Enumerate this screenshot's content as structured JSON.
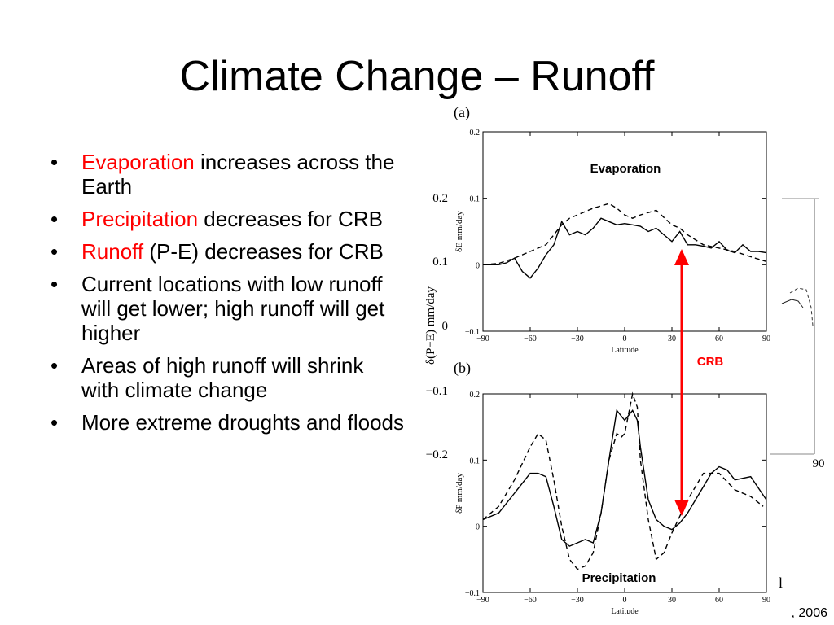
{
  "slide": {
    "title": "Climate Change – Runoff",
    "bullets": [
      {
        "highlight": "Evaporation",
        "text": " increases across the Earth"
      },
      {
        "highlight": "Precipitation",
        "text": " decreases for CRB"
      },
      {
        "highlight": "Runoff",
        "text": " (P-E) decreases for CRB"
      },
      {
        "highlight": "",
        "text": "Current locations with low runoff will get lower; high runoff will get higher"
      },
      {
        "highlight": "",
        "text": "Areas of high runoff will shrink with climate change"
      },
      {
        "highlight": "",
        "text": "More extreme droughts and floods"
      }
    ],
    "citation_fragment": ", 2006",
    "edge_fragment": "l"
  },
  "colors": {
    "highlight": "#ff0000",
    "arrow": "#ff0000",
    "crb_label": "#ff0000"
  },
  "annotations": {
    "evaporation_label": "Evaporation",
    "precipitation_label": "Precipitation",
    "crb_label": "CRB"
  },
  "chart_data": [
    {
      "type": "line",
      "panel_label": "(a)",
      "xlabel": "Latitude",
      "ylabel": "δE  mm/day",
      "xlim": [
        -90,
        90
      ],
      "ylim": [
        -0.1,
        0.2
      ],
      "xticks": [
        "−90",
        "−60",
        "−30",
        "0",
        "30",
        "60",
        "90"
      ],
      "yticks": [
        "−0.1",
        "0",
        "0.1",
        "0.2"
      ],
      "series": [
        {
          "style": "solid",
          "x": [
            -90,
            -80,
            -75,
            -70,
            -65,
            -60,
            -55,
            -50,
            -45,
            -40,
            -35,
            -30,
            -25,
            -20,
            -15,
            -10,
            -5,
            0,
            5,
            10,
            15,
            20,
            25,
            30,
            35,
            40,
            45,
            50,
            55,
            60,
            65,
            70,
            75,
            80,
            85,
            90
          ],
          "y": [
            0.0,
            0.0,
            0.003,
            0.01,
            -0.01,
            -0.02,
            -0.005,
            0.015,
            0.03,
            0.065,
            0.045,
            0.05,
            0.045,
            0.055,
            0.07,
            0.065,
            0.06,
            0.062,
            0.06,
            0.058,
            0.05,
            0.055,
            0.045,
            0.035,
            0.05,
            0.03,
            0.03,
            0.028,
            0.025,
            0.035,
            0.022,
            0.018,
            0.03,
            0.02,
            0.02,
            0.018
          ]
        },
        {
          "style": "dashed",
          "x": [
            -90,
            -80,
            -70,
            -60,
            -50,
            -40,
            -35,
            -30,
            -20,
            -10,
            -5,
            0,
            5,
            10,
            20,
            30,
            35,
            40,
            50,
            60,
            70,
            80,
            90
          ],
          "y": [
            0.0,
            0.002,
            0.01,
            0.02,
            0.03,
            0.06,
            0.07,
            0.075,
            0.085,
            0.092,
            0.085,
            0.075,
            0.07,
            0.075,
            0.082,
            0.06,
            0.055,
            0.045,
            0.03,
            0.025,
            0.02,
            0.012,
            0.005
          ]
        }
      ]
    },
    {
      "type": "line",
      "panel_label": "(b)",
      "xlabel": "Latitude",
      "ylabel": "δP  mm/day",
      "xlim": [
        -90,
        90
      ],
      "ylim": [
        -0.1,
        0.2
      ],
      "xticks": [
        "−90",
        "−60",
        "−30",
        "0",
        "30",
        "60",
        "90"
      ],
      "yticks": [
        "−0.1",
        "0",
        "0.1",
        "0.2"
      ],
      "series": [
        {
          "style": "solid",
          "x": [
            -90,
            -80,
            -70,
            -60,
            -55,
            -50,
            -45,
            -40,
            -35,
            -30,
            -25,
            -20,
            -15,
            -10,
            -5,
            0,
            5,
            8,
            10,
            15,
            20,
            25,
            30,
            35,
            40,
            50,
            55,
            60,
            65,
            70,
            80,
            90
          ],
          "y": [
            0.01,
            0.02,
            0.05,
            0.08,
            0.08,
            0.075,
            0.03,
            -0.02,
            -0.03,
            -0.025,
            -0.02,
            -0.025,
            0.02,
            0.1,
            0.175,
            0.16,
            0.175,
            0.16,
            0.12,
            0.04,
            0.01,
            0.0,
            -0.005,
            0.005,
            0.02,
            0.06,
            0.08,
            0.09,
            0.085,
            0.07,
            0.075,
            0.04
          ]
        },
        {
          "style": "dashed",
          "x": [
            -90,
            -80,
            -70,
            -60,
            -55,
            -50,
            -45,
            -40,
            -35,
            -30,
            -25,
            -20,
            -15,
            -10,
            -5,
            -2,
            0,
            5,
            8,
            10,
            15,
            20,
            25,
            30,
            40,
            50,
            60,
            70,
            80,
            88
          ],
          "y": [
            0.01,
            0.03,
            0.07,
            0.12,
            0.14,
            0.13,
            0.07,
            0.0,
            -0.05,
            -0.065,
            -0.06,
            -0.04,
            0.02,
            0.1,
            0.14,
            0.135,
            0.14,
            0.2,
            0.18,
            0.1,
            0.01,
            -0.05,
            -0.04,
            -0.01,
            0.04,
            0.08,
            0.08,
            0.055,
            0.045,
            0.03
          ]
        }
      ]
    }
  ]
}
